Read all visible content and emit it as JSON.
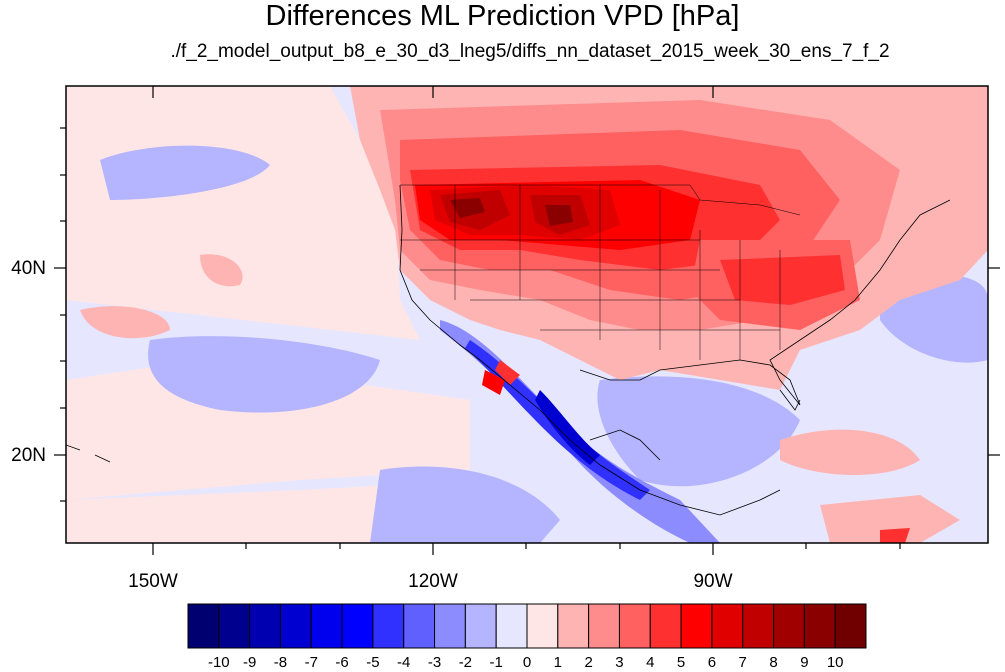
{
  "title": "Differences ML Prediction VPD [hPa]",
  "subtitle": "./f_2_model_output_b8_e_30_d3_lneg5/diffs_nn_dataset_2015_week_30_ens_7_f_2",
  "map": {
    "lat_labels": [
      {
        "id": "40n",
        "text": "40N"
      },
      {
        "id": "20n",
        "text": "20N"
      }
    ],
    "lon_labels": [
      {
        "id": "150w",
        "text": "150W"
      },
      {
        "id": "120w",
        "text": "120W"
      },
      {
        "id": "90w",
        "text": "90W"
      }
    ]
  },
  "colorbar": {
    "labels": [
      "-10",
      "-9",
      "-8",
      "-7",
      "-6",
      "-5",
      "-4",
      "-3",
      "-2",
      "-1",
      "0",
      "1",
      "2",
      "3",
      "4",
      "5",
      "6",
      "7",
      "8",
      "9",
      "10"
    ],
    "colors": [
      "#000070",
      "#00008f",
      "#0000b0",
      "#0000d0",
      "#0000ee",
      "#0000ff",
      "#3030ff",
      "#6060ff",
      "#8c8cff",
      "#b4b4ff",
      "#e6e6ff",
      "#ffe6e6",
      "#ffb4b4",
      "#ff8c8c",
      "#ff6060",
      "#ff3030",
      "#ff0000",
      "#e00000",
      "#c00000",
      "#a00000",
      "#8a0000",
      "#700000"
    ]
  }
}
